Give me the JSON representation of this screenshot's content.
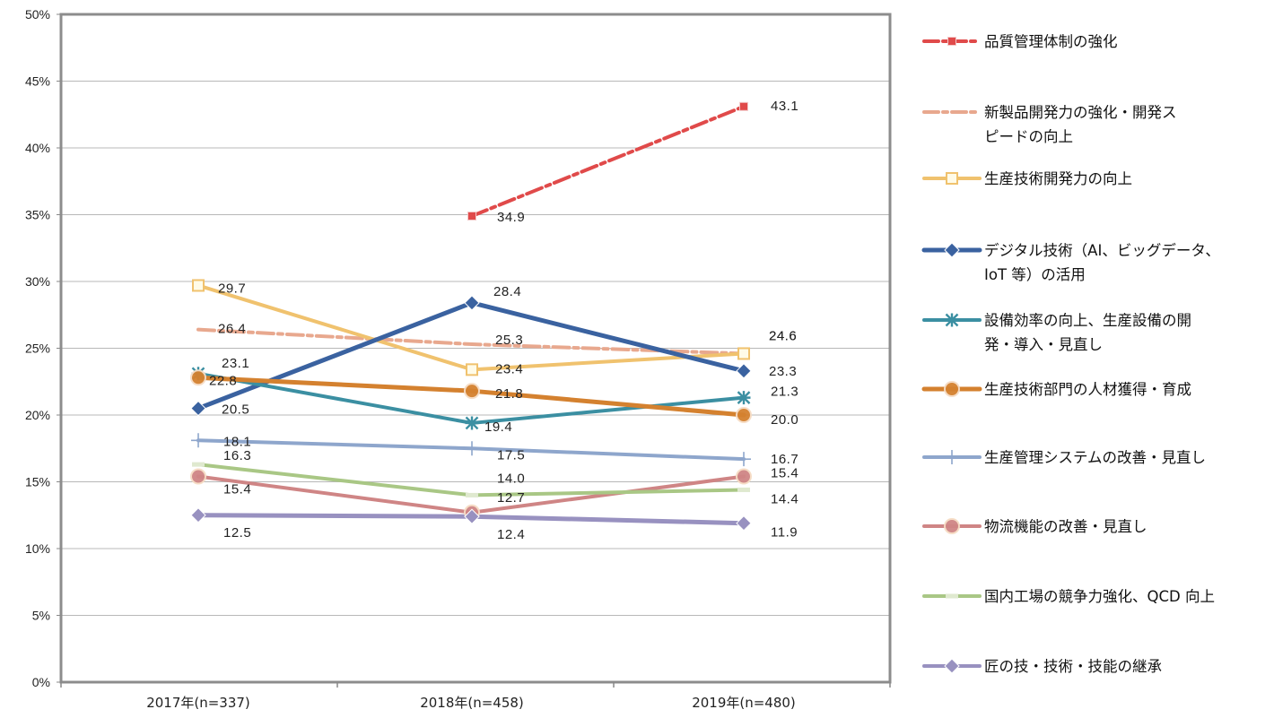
{
  "chart_data": {
    "type": "line",
    "title": "",
    "xlabel": "",
    "ylabel": "",
    "ylim": [
      0,
      50
    ],
    "y_tick_labels": [
      "0%",
      "5%",
      "10%",
      "15%",
      "20%",
      "25%",
      "30%",
      "35%",
      "40%",
      "45%",
      "50%"
    ],
    "grid": true,
    "legend_position": "right",
    "categories": [
      "2017年(n=337)",
      "2018年(n=458)",
      "2019年(n=480)"
    ],
    "series": [
      {
        "name": "品質管理体制の強化",
        "name_lines": [
          "品質管理体制の強化"
        ],
        "color": "#e04a4a",
        "dash": "dashdot",
        "marker": "square",
        "values": [
          null,
          34.9,
          43.1
        ],
        "labels": [
          "",
          "34.9",
          "43.1"
        ]
      },
      {
        "name": "新製品開発力の強化・開発スピードの向上",
        "name_lines": [
          "新製品開発力の強化・開発ス",
          "ピードの向上"
        ],
        "color": "#e8a88e",
        "dash": "dashdot",
        "marker": "none",
        "values": [
          26.4,
          25.3,
          24.6
        ],
        "labels": [
          "26.4",
          "25.3",
          "24.6"
        ]
      },
      {
        "name": "生産技術開発力の向上",
        "name_lines": [
          "生産技術開発力の向上"
        ],
        "color": "#f0c26e",
        "dash": "solid",
        "marker": "square-open",
        "values": [
          29.7,
          23.4,
          24.6
        ],
        "labels": [
          "29.7",
          "23.4",
          "24.6"
        ]
      },
      {
        "name": "デジタル技術（AI、ビッグデータ、IoT 等）の活用",
        "name_lines": [
          "デジタル技術（AI、ビッグデータ、",
          "IoT 等）の活用"
        ],
        "color": "#3a62a0",
        "dash": "solid",
        "marker": "diamond",
        "values": [
          20.5,
          28.4,
          23.3
        ],
        "labels": [
          "20.5",
          "28.4",
          "23.3"
        ]
      },
      {
        "name": "設備効率の向上、生産設備の開発・導入・見直し",
        "name_lines": [
          "設備効率の向上、生産設備の開",
          "発・導入・見直し"
        ],
        "color": "#3b8fa2",
        "dash": "solid",
        "marker": "star",
        "values": [
          23.1,
          19.4,
          21.3
        ],
        "labels": [
          "23.1",
          "19.4",
          "21.3"
        ]
      },
      {
        "name": "生産技術部門の人材獲得・育成",
        "name_lines": [
          "生産技術部門の人材獲得・育成"
        ],
        "color": "#d4812f",
        "dash": "solid",
        "marker": "circle",
        "values": [
          22.8,
          21.8,
          20.0
        ],
        "labels": [
          "22.8",
          "21.8",
          "20.0"
        ]
      },
      {
        "name": "生産管理システムの改善・見直し",
        "name_lines": [
          "生産管理システムの改善・見直し"
        ],
        "color": "#8ea6cc",
        "dash": "solid",
        "marker": "plus",
        "values": [
          18.1,
          17.5,
          16.7
        ],
        "labels": [
          "18.1",
          "17.5",
          "16.7"
        ]
      },
      {
        "name": "物流機能の改善・見直し",
        "name_lines": [
          "物流機能の改善・見直し"
        ],
        "color": "#cf8585",
        "dash": "solid",
        "marker": "circle",
        "values": [
          15.4,
          12.7,
          15.4
        ],
        "labels": [
          "15.4",
          "12.7",
          "15.4"
        ]
      },
      {
        "name": "国内工場の競争力強化、QCD 向上",
        "name_lines": [
          "国内工場の競争力強化、QCD 向上"
        ],
        "color": "#a9c785",
        "dash": "solid",
        "marker": "dash",
        "values": [
          16.3,
          14.0,
          14.4
        ],
        "labels": [
          "16.3",
          "14.0",
          "14.4"
        ]
      },
      {
        "name": "匠の技・技術・技能の継承",
        "name_lines": [
          "匠の技・技術・技能の継承"
        ],
        "color": "#9891c0",
        "dash": "solid",
        "marker": "diamond",
        "values": [
          12.5,
          12.4,
          11.9
        ],
        "labels": [
          "12.5",
          "12.4",
          "11.9"
        ]
      }
    ]
  }
}
